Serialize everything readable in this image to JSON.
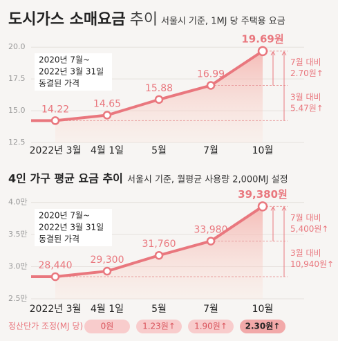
{
  "chart_data": [
    {
      "type": "line",
      "title": "도시가스 소매요금",
      "title_suffix": "추이",
      "subtitle": "서울시 기준, 1MJ 당 주택용 요금",
      "categories": [
        "2022년 3월",
        "4월 1일",
        "5월",
        "7월",
        "10월"
      ],
      "values": [
        14.22,
        14.65,
        15.88,
        16.99,
        19.69
      ],
      "value_labels": [
        "14.22",
        "14.65",
        "15.88",
        "16.99",
        "19.69원"
      ],
      "color": "#e9777e",
      "ylim": [
        12.5,
        20.5
      ],
      "yticks": [
        12.5,
        {
          "value": 15,
          "label": "15.0"
        },
        17.5,
        {
          "value": 20,
          "label": "20.0"
        }
      ],
      "annotation": [
        "2020년 7월~",
        "2022년 3월 31일",
        "동결된 가격"
      ],
      "comparisons": [
        {
          "label": "7월 대비",
          "value_label": "2.70원↑"
        },
        {
          "label": "3월 대비",
          "value_label": "5.47원↑"
        }
      ]
    },
    {
      "type": "line",
      "title": "4인 가구 평균 요금 추이",
      "subtitle": "서울시 기준, 월평균 사용량 2,000MJ 설정",
      "categories": [
        "2022년 3월",
        "4월 1일",
        "5월",
        "7월",
        "10월"
      ],
      "values": [
        28440,
        29300,
        31760,
        33980,
        39380
      ],
      "value_labels": [
        "28,440",
        "29,300",
        "31,760",
        "33,980",
        "39,380원"
      ],
      "color": "#e9777e",
      "ylim": [
        25000,
        40500
      ],
      "yticks": [
        {
          "value": 25000,
          "label": "2.5만"
        },
        {
          "value": 30000,
          "label": "3.0만"
        },
        {
          "value": 35000,
          "label": "3.5만"
        },
        {
          "value": 40000,
          "label": "4.0만"
        }
      ],
      "annotation": [
        "2020년 7월~",
        "2022년 3월 31일",
        "동결된 가격"
      ],
      "comparisons": [
        {
          "label": "7월 대비",
          "value_label": "5,400원↑"
        },
        {
          "label": "3월 대비",
          "value_label": "10,940원↑"
        }
      ]
    }
  ],
  "footer": {
    "label": "정산단가 조정(MJ 당)",
    "items": [
      "0원",
      "1.23원↑",
      "1.90원↑",
      "2.30원↑"
    ]
  }
}
